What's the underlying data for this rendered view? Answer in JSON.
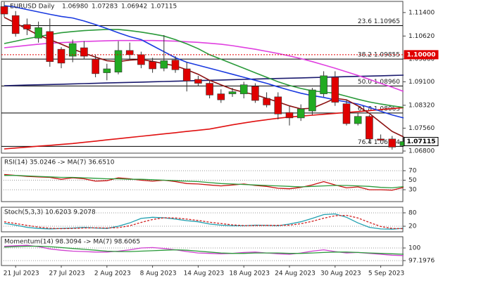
{
  "chart_data": [
    {
      "type": "candlestick",
      "title": "EURUSD Daily",
      "ohlc_labels": [
        "1.06980",
        "1.07283",
        "1.06942",
        "1.07115"
      ],
      "categories": [
        null,
        "21 Jul 2023",
        null,
        null,
        null,
        "27 Jul 2023",
        null,
        null,
        null,
        "2 Aug 2023",
        null,
        null,
        null,
        "8 Aug 2023",
        null,
        null,
        null,
        "14 Aug 2023",
        null,
        null,
        null,
        "18 Aug 2023",
        null,
        null,
        null,
        "24 Aug 2023",
        null,
        null,
        null,
        "30 Aug 2023",
        null,
        null,
        null,
        "5 Sep 2023",
        null,
        null
      ],
      "open": [
        1.116,
        1.113,
        1.11,
        1.1055,
        1.1077,
        1.1018,
        1.0995,
        1.1023,
        1.0985,
        1.094,
        1.0942,
        1.1014,
        1.1,
        1.0977,
        1.0955,
        1.0982,
        1.0953,
        1.0918,
        1.0905,
        1.087,
        1.087,
        1.087,
        1.0895,
        1.0855,
        1.086,
        1.0808,
        1.079,
        1.0813,
        1.087,
        1.0925,
        1.0837,
        1.0771,
        1.0795,
        1.072,
        1.072,
        1.0698
      ],
      "high": [
        1.1175,
        1.1145,
        1.112,
        1.111,
        1.112,
        1.1025,
        1.105,
        1.1045,
        1.1,
        1.097,
        1.1045,
        1.104,
        1.101,
        1.099,
        1.1065,
        1.0995,
        1.0975,
        1.093,
        1.0915,
        1.0885,
        1.089,
        1.091,
        1.0905,
        1.0875,
        1.0875,
        1.083,
        1.0835,
        1.089,
        1.0945,
        1.0945,
        1.085,
        1.0805,
        1.08,
        1.0735,
        1.073,
        1.07283
      ],
      "low": [
        1.1125,
        1.106,
        1.1065,
        1.104,
        1.096,
        1.0955,
        1.0975,
        1.0985,
        1.0925,
        1.0915,
        1.0935,
        1.0985,
        1.0955,
        1.094,
        1.0945,
        1.094,
        1.0878,
        1.0895,
        1.0855,
        1.084,
        1.086,
        1.0855,
        1.084,
        1.0825,
        1.0785,
        1.0765,
        1.078,
        1.08,
        1.086,
        1.083,
        1.0765,
        1.0765,
        1.0705,
        1.071,
        1.0685,
        1.06942
      ],
      "close": [
        1.1135,
        1.107,
        1.1085,
        1.109,
        1.0977,
        1.0972,
        1.1037,
        1.0995,
        1.0937,
        1.0953,
        1.1014,
        1.1,
        1.0967,
        1.0953,
        1.098,
        1.095,
        1.0913,
        1.0905,
        1.0866,
        1.085,
        1.0877,
        1.09,
        1.0848,
        1.0833,
        1.0803,
        1.079,
        1.082,
        1.0883,
        1.093,
        1.0842,
        1.0771,
        1.0795,
        1.072,
        1.0716,
        1.0693,
        1.07115
      ],
      "up_color": "#22aa22",
      "down_color": "#e00000",
      "ylim": [
        1.0673,
        1.1177
      ],
      "yticks": [
        {
          "value": 1.114,
          "label": "1.11400"
        },
        {
          "value": 1.1062,
          "label": "1.10620"
        },
        {
          "value": 1.0986,
          "label": "1.09860"
        },
        {
          "value": 1.091,
          "label": "1.09100"
        },
        {
          "value": 1.0832,
          "label": "1.08320"
        },
        {
          "value": 1.0756,
          "label": "1.07560"
        },
        {
          "value": 1.068,
          "label": "1.06800"
        }
      ],
      "levels": [
        {
          "label": "23.6 1.10965",
          "value": 1.10965
        },
        {
          "label": "38.2 1.09855",
          "value": 1.09855
        },
        {
          "label": "50.0 1.08960",
          "value": 1.0896
        },
        {
          "label": "61.8 1.08063",
          "value": 1.08063
        },
        {
          "label": "76.4 1.06954",
          "value": 1.06954
        }
      ],
      "markers": [
        {
          "label": "1.10000",
          "value": 1.1,
          "color": "#e00000",
          "dashed": true
        },
        {
          "label": "1.07115",
          "value": 1.07115,
          "color": "#000000",
          "dashed": false
        }
      ],
      "series": [
        {
          "color": "#e01010",
          "values": [
            1.0687,
            1.069,
            1.0693,
            1.0696,
            1.0699,
            1.0702,
            1.0705,
            1.0709,
            1.0713,
            1.0717,
            1.0721,
            1.0725,
            1.0729,
            1.0733,
            1.0737,
            1.0741,
            1.0745,
            1.0749,
            1.0753,
            1.076,
            1.0767,
            1.0773,
            1.0779,
            1.0784,
            1.0789,
            1.0793,
            1.0796,
            1.0799,
            1.0802,
            1.0805,
            1.0808,
            1.0811,
            1.0814,
            1.0818,
            1.0821,
            1.0824
          ]
        },
        {
          "color": "#1a1a6e",
          "values": [
            1.0897,
            1.0898,
            1.0899,
            1.09,
            1.0901,
            1.0902,
            1.0903,
            1.0904,
            1.0905,
            1.0906,
            1.0907,
            1.0908,
            1.0909,
            1.091,
            1.0911,
            1.0912,
            1.0913,
            1.0914,
            1.0915,
            1.0916,
            1.0917,
            1.0918,
            1.0919,
            1.092,
            1.0921,
            1.0922,
            1.0923,
            1.0924,
            1.0925,
            1.0926,
            1.0927,
            1.0928,
            1.0929,
            1.093,
            1.0931,
            1.0932
          ]
        },
        {
          "color": "#e040e0",
          "values": [
            1.1023,
            1.1027,
            1.1031,
            1.1035,
            1.1038,
            1.104,
            1.1042,
            1.1044,
            1.1045,
            1.1046,
            1.1047,
            1.1047,
            1.1047,
            1.1047,
            1.1046,
            1.1045,
            1.1043,
            1.1041,
            1.1038,
            1.1035,
            1.103,
            1.1024,
            1.1018,
            1.1011,
            1.1004,
            1.0996,
            1.0987,
            1.0977,
            1.0966,
            1.0955,
            1.0943,
            1.0931,
            1.0918,
            1.0905,
            1.0892,
            1.0878
          ]
        },
        {
          "color": "#2a9a3a",
          "values": [
            1.1037,
            1.1045,
            1.1053,
            1.106,
            1.1067,
            1.1073,
            1.1077,
            1.108,
            1.1082,
            1.1084,
            1.1084,
            1.108,
            1.1075,
            1.1069,
            1.1062,
            1.105,
            1.1036,
            1.102,
            1.1,
            1.0985,
            1.097,
            1.0955,
            1.094,
            1.0925,
            1.091,
            1.0898,
            1.0888,
            1.088,
            1.0876,
            1.0872,
            1.0862,
            1.0852,
            1.0843,
            1.0836,
            1.083,
            1.0825
          ]
        },
        {
          "color": "#1a3ae0",
          "values": [
            1.1163,
            1.1158,
            1.115,
            1.1142,
            1.1134,
            1.1127,
            1.1122,
            1.1112,
            1.11,
            1.1087,
            1.1073,
            1.106,
            1.105,
            1.103,
            1.101,
            1.099,
            1.0975,
            1.0965,
            1.0955,
            1.0945,
            1.0935,
            1.0925,
            1.0915,
            1.0905,
            1.0893,
            1.0882,
            1.0872,
            1.0864,
            1.0858,
            1.085,
            1.0843,
            1.0836,
            1.0825,
            1.0812,
            1.08,
            1.079
          ]
        },
        {
          "color": "#8b1010",
          "values": [
            1.1124,
            1.1105,
            1.1085,
            1.1065,
            1.105,
            1.1035,
            1.1019,
            1.1005,
            1.0992,
            1.098,
            1.0977,
            1.0982,
            1.0984,
            1.0978,
            1.097,
            1.0963,
            1.095,
            1.0935,
            1.0915,
            1.09,
            1.0885,
            1.0875,
            1.0867,
            1.0855,
            1.0843,
            1.083,
            1.082,
            1.0822,
            1.0838,
            1.0855,
            1.085,
            1.083,
            1.0805,
            1.0775,
            1.0745,
            1.0727
          ]
        }
      ]
    },
    {
      "type": "line",
      "title": "RSI(14) 35.0246 -> MA(7) 36.6510",
      "ylim": [
        5,
        98
      ],
      "yticks": [
        70,
        50,
        30
      ],
      "grid": true,
      "series": [
        {
          "color": "#c81010",
          "dashed": false,
          "values": [
            62,
            60,
            58,
            57,
            56,
            52,
            55,
            53,
            48,
            49,
            55,
            53,
            50,
            48,
            50,
            47,
            43,
            42,
            40,
            38,
            40,
            42,
            39,
            37,
            33,
            32,
            35,
            40,
            47,
            40,
            34,
            36,
            30,
            30,
            29,
            35.0246
          ]
        },
        {
          "color": "#2a9a3a",
          "dashed": false,
          "values": [
            60,
            60,
            59,
            58,
            57,
            56,
            56,
            55,
            54,
            53,
            53,
            52,
            52,
            51,
            50,
            49,
            48,
            47,
            45,
            43,
            42,
            41,
            40,
            39,
            38,
            37,
            36,
            37,
            38,
            39,
            39,
            38,
            37,
            35,
            34,
            36.651
          ]
        }
      ]
    },
    {
      "type": "line",
      "title": "Stoch(5,3,3) 10.6203 9.2078",
      "ylim": [
        -5,
        105
      ],
      "yticks": [
        80,
        20
      ],
      "grid": true,
      "series": [
        {
          "color": "#20a0b0",
          "dashed": false,
          "values": [
            33,
            25,
            15,
            10,
            8,
            10,
            12,
            15,
            12,
            10,
            20,
            35,
            55,
            60,
            58,
            52,
            45,
            40,
            30,
            25,
            22,
            22,
            25,
            24,
            22,
            30,
            40,
            55,
            72,
            75,
            60,
            35,
            15,
            8,
            7,
            10.6203
          ]
        },
        {
          "color": "#d02020",
          "dashed": true,
          "values": [
            40,
            32,
            24,
            16,
            11,
            9,
            10,
            12,
            13,
            12,
            14,
            22,
            37,
            50,
            58,
            57,
            52,
            46,
            38,
            32,
            26,
            23,
            23,
            24,
            24,
            25,
            31,
            42,
            56,
            67,
            69,
            57,
            37,
            19,
            10,
            9.2078
          ]
        }
      ]
    },
    {
      "type": "line",
      "title": "Momentum(14) 98.3094 -> MA(7) 98.6065",
      "ylim": [
        96.1,
        102.5
      ],
      "yticks": [
        100,
        97.1976
      ],
      "grid": true,
      "series": [
        {
          "color": "#d040d0",
          "dashed": false,
          "values": [
            100.4,
            100.5,
            100.6,
            100.3,
            99.8,
            99.5,
            99.3,
            99.2,
            99.1,
            99.1,
            99.3,
            99.6,
            100.0,
            100.1,
            99.9,
            99.6,
            99.2,
            98.9,
            98.8,
            98.7,
            98.8,
            99.0,
            99.1,
            98.9,
            98.7,
            98.6,
            98.9,
            99.3,
            99.6,
            99.2,
            98.9,
            99.0,
            98.8,
            98.6,
            98.4,
            98.3094
          ]
        },
        {
          "color": "#2a9a3a",
          "dashed": false,
          "values": [
            100.2,
            100.3,
            100.4,
            100.4,
            100.3,
            100.1,
            99.9,
            99.7,
            99.5,
            99.3,
            99.2,
            99.2,
            99.3,
            99.4,
            99.5,
            99.6,
            99.5,
            99.3,
            99.1,
            98.9,
            98.8,
            98.8,
            98.9,
            98.9,
            98.9,
            98.8,
            98.8,
            98.9,
            99.0,
            99.1,
            99.1,
            99.0,
            98.9,
            98.8,
            98.7,
            98.6065
          ]
        }
      ]
    }
  ]
}
